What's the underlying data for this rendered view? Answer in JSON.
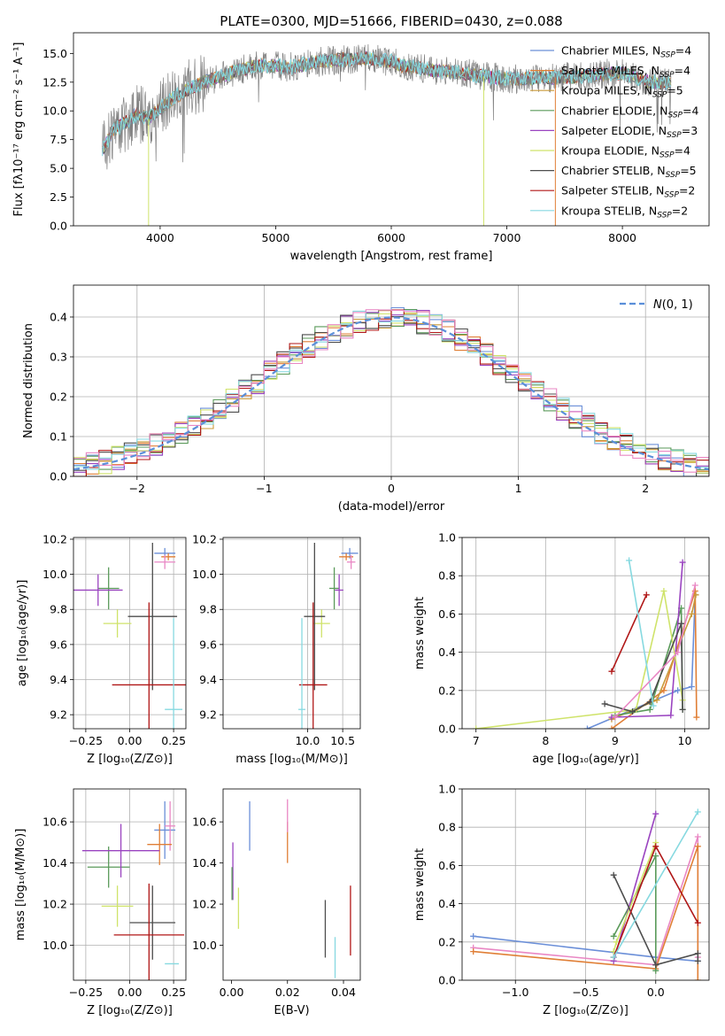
{
  "chart_data": [
    {
      "type": "line",
      "title": "PLATE=0300, MJD=51666, FIBERID=0430, z=0.088",
      "xlabel": "wavelength [Angstrom, rest frame]",
      "ylabel": "Flux [fλ10⁻¹⁷ erg cm⁻² s⁻¹ A⁻¹]",
      "xlim": [
        3250,
        8750
      ],
      "ylim": [
        0,
        16.8
      ],
      "xticks": [
        "4000",
        "5000",
        "6000",
        "7000",
        "8000"
      ],
      "yticks": [
        "0.0",
        "2.5",
        "5.0",
        "7.5",
        "10.0",
        "12.5",
        "15.0"
      ],
      "legend_position": "upper-right",
      "series": [
        {
          "name": "Chabrier MILES, N_SSP=4",
          "color": "#6b8fd8"
        },
        {
          "name": "Salpeter MILES, N_SSP=4",
          "color": "#e07f36"
        },
        {
          "name": "Kroupa MILES, N_SSP=5",
          "color": "#c99a3a"
        },
        {
          "name": "Chabrier ELODIE, N_SSP=4",
          "color": "#5a9a5a"
        },
        {
          "name": "Salpeter ELODIE, N_SSP=3",
          "color": "#9a44c0"
        },
        {
          "name": "Kroupa ELODIE, N_SSP=4",
          "color": "#cfe36a"
        },
        {
          "name": "Chabrier STELIB, N_SSP=5",
          "color": "#4d4d4d"
        },
        {
          "name": "Salpeter STELIB, N_SSP=2",
          "color": "#b01717"
        },
        {
          "name": "Kroupa STELIB, N_SSP=2",
          "color": "#86d9e0"
        }
      ],
      "data_series": {
        "name": "data",
        "color": "#808080"
      },
      "continuum": [
        [
          3500,
          6.5
        ],
        [
          3600,
          8.4
        ],
        [
          3700,
          9.0
        ],
        [
          3800,
          9.8
        ],
        [
          3900,
          9.3
        ],
        [
          4000,
          10.2
        ],
        [
          4100,
          11.0
        ],
        [
          4200,
          11.6
        ],
        [
          4300,
          12.2
        ],
        [
          4400,
          12.6
        ],
        [
          4500,
          12.9
        ],
        [
          4600,
          13.3
        ],
        [
          4700,
          13.6
        ],
        [
          4800,
          13.8
        ],
        [
          4900,
          14.0
        ],
        [
          5000,
          13.9
        ],
        [
          5100,
          13.8
        ],
        [
          5200,
          13.9
        ],
        [
          5300,
          14.2
        ],
        [
          5400,
          14.3
        ],
        [
          5500,
          14.4
        ],
        [
          5600,
          14.5
        ],
        [
          5700,
          14.5
        ],
        [
          5800,
          14.6
        ],
        [
          5900,
          14.4
        ],
        [
          6000,
          14.3
        ],
        [
          6100,
          13.9
        ],
        [
          6200,
          13.8
        ],
        [
          6300,
          13.6
        ],
        [
          6400,
          13.5
        ],
        [
          6500,
          13.4
        ],
        [
          6600,
          13.3
        ],
        [
          6700,
          13.2
        ],
        [
          6800,
          13.0
        ],
        [
          6900,
          12.9
        ],
        [
          7000,
          12.8
        ],
        [
          7200,
          12.8
        ],
        [
          7400,
          12.9
        ],
        [
          7600,
          13.0
        ],
        [
          7800,
          13.2
        ],
        [
          8000,
          13.3
        ],
        [
          8200,
          12.6
        ],
        [
          8400,
          12.4
        ]
      ]
    },
    {
      "type": "histogram",
      "xlabel": "(data-model)/error",
      "ylabel": "Normed distribution",
      "xlim": [
        -2.5,
        2.5
      ],
      "ylim": [
        0,
        0.48
      ],
      "xticks": [
        "−2",
        "−1",
        "0",
        "1",
        "2"
      ],
      "yticks": [
        "0.0",
        "0.1",
        "0.2",
        "0.3",
        "0.4"
      ],
      "grid": true,
      "legend_position": "upper-right",
      "reference": {
        "name": "N(0,1)",
        "label_prefix": "𝒩",
        "label_suffix": "(0, 1)",
        "mean": 0,
        "sd": 1,
        "color": "#5b8fd9"
      },
      "bin_width": 0.1,
      "bins_from": -2.6,
      "series_colors": [
        "#6b8fd8",
        "#e07f36",
        "#c99a3a",
        "#5a9a5a",
        "#9a44c0",
        "#cfe36a",
        "#4d4d4d",
        "#b01717",
        "#86d9e0",
        "#e987c4"
      ]
    },
    {
      "type": "errorbar",
      "xlabel": "Z [log₁₀(Z/Z⊙)]",
      "ylabel": "age  [log₁₀(age/yr)]",
      "xlim": [
        -0.32,
        0.32
      ],
      "ylim": [
        9.12,
        10.21
      ],
      "xticks": [
        "−0.25",
        "0.00",
        "0.25"
      ],
      "yticks": [
        "9.2",
        "9.4",
        "9.6",
        "9.8",
        "10.0",
        "10.2"
      ],
      "grid": true,
      "points": [
        {
          "x": 0.2,
          "y": 10.12,
          "xerr": 0.06,
          "yerr": 0.03,
          "color": "#6b8fd8"
        },
        {
          "x": 0.22,
          "y": 10.1,
          "xerr": 0.04,
          "yerr": 0.02,
          "color": "#e07f36"
        },
        {
          "x": 0.2,
          "y": 10.07,
          "xerr": 0.06,
          "yerr": 0.04,
          "color": "#e987c4"
        },
        {
          "x": -0.12,
          "y": 9.92,
          "xerr": 0.06,
          "yerr": 0.12,
          "color": "#5a9a5a"
        },
        {
          "x": -0.18,
          "y": 9.91,
          "xerr": 0.14,
          "yerr": 0.09,
          "color": "#9a44c0"
        },
        {
          "x": -0.07,
          "y": 9.72,
          "xerr": 0.08,
          "yerr": 0.08,
          "color": "#cfe36a"
        },
        {
          "x": 0.13,
          "y": 9.76,
          "xerr": 0.14,
          "yerr": 0.42,
          "color": "#4d4d4d"
        },
        {
          "x": 0.11,
          "y": 9.37,
          "xerr": 0.21,
          "yerr": 0.47,
          "color": "#b01717"
        },
        {
          "x": 0.25,
          "y": 9.23,
          "xerr": 0.05,
          "yerr": 0.52,
          "color": "#86d9e0"
        }
      ]
    },
    {
      "type": "errorbar",
      "xlabel": "mass [log₁₀(M/M⊙)]",
      "ylabel": "",
      "xlim": [
        8.8,
        10.75
      ],
      "ylim": [
        9.12,
        10.21
      ],
      "xticks": [
        "10.0",
        "10.5"
      ],
      "yticks": [
        "9.2",
        "9.4",
        "9.6",
        "9.8",
        "10.0",
        "10.2"
      ],
      "grid": true,
      "points": [
        {
          "x": 10.6,
          "y": 10.12,
          "xerr": 0.12,
          "yerr": 0.03,
          "color": "#6b8fd8"
        },
        {
          "x": 10.55,
          "y": 10.1,
          "xerr": 0.1,
          "yerr": 0.02,
          "color": "#e07f36"
        },
        {
          "x": 10.62,
          "y": 10.07,
          "xerr": 0.06,
          "yerr": 0.04,
          "color": "#e987c4"
        },
        {
          "x": 10.38,
          "y": 9.92,
          "xerr": 0.07,
          "yerr": 0.12,
          "color": "#5a9a5a"
        },
        {
          "x": 10.45,
          "y": 9.91,
          "xerr": 0.06,
          "yerr": 0.09,
          "color": "#9a44c0"
        },
        {
          "x": 10.2,
          "y": 9.72,
          "xerr": 0.12,
          "yerr": 0.08,
          "color": "#cfe36a"
        },
        {
          "x": 10.1,
          "y": 9.76,
          "xerr": 0.15,
          "yerr": 0.42,
          "color": "#4d4d4d"
        },
        {
          "x": 10.08,
          "y": 9.37,
          "xerr": 0.2,
          "yerr": 0.47,
          "color": "#b01717"
        },
        {
          "x": 9.92,
          "y": 9.23,
          "xerr": 0.05,
          "yerr": 0.52,
          "color": "#86d9e0"
        }
      ]
    },
    {
      "type": "line",
      "xlabel": "age  [log₁₀(age/yr)]",
      "ylabel": "mass weight",
      "xlim": [
        6.8,
        10.35
      ],
      "ylim": [
        0,
        1
      ],
      "xticks": [
        "7",
        "8",
        "9",
        "10"
      ],
      "yticks": [
        "0.0",
        "0.2",
        "0.4",
        "0.6",
        "0.8",
        "1.0"
      ],
      "grid": true,
      "series": [
        {
          "color": "#6b8fd8",
          "x": [
            8.6,
            9.9,
            10.1,
            10.15
          ],
          "y": [
            0.0,
            0.2,
            0.22,
            0.7
          ]
        },
        {
          "color": "#e07f36",
          "x": [
            8.95,
            9.7,
            10.15,
            10.17
          ],
          "y": [
            0.0,
            0.2,
            0.72,
            0.06
          ]
        },
        {
          "color": "#c99a3a",
          "x": [
            8.95,
            9.6,
            10.1,
            10.16
          ],
          "y": [
            0.05,
            0.15,
            0.6,
            0.7
          ]
        },
        {
          "color": "#5a9a5a",
          "x": [
            9.0,
            9.5,
            9.95,
            9.97
          ],
          "y": [
            0.07,
            0.1,
            0.63,
            0.1
          ]
        },
        {
          "color": "#9a44c0",
          "x": [
            8.95,
            9.8,
            9.97
          ],
          "y": [
            0.06,
            0.07,
            0.87
          ]
        },
        {
          "color": "#cfe36a",
          "x": [
            7.0,
            9.3,
            9.7,
            9.97
          ],
          "y": [
            0.0,
            0.1,
            0.72,
            0.15
          ]
        },
        {
          "color": "#4d4d4d",
          "x": [
            8.85,
            9.25,
            9.5,
            9.95,
            9.97
          ],
          "y": [
            0.13,
            0.09,
            0.14,
            0.55,
            0.1
          ]
        },
        {
          "color": "#b01717",
          "x": [
            8.95,
            9.45
          ],
          "y": [
            0.3,
            0.7
          ]
        },
        {
          "color": "#86d9e0",
          "x": [
            9.2,
            9.55
          ],
          "y": [
            0.88,
            0.12
          ]
        },
        {
          "color": "#e987c4",
          "x": [
            9.0,
            9.9,
            10.15
          ],
          "y": [
            0.06,
            0.4,
            0.75
          ]
        }
      ]
    },
    {
      "type": "errorbar",
      "xlabel": "Z [log₁₀(Z/Z⊙)]",
      "ylabel": "mass [log₁₀(M/M⊙)]",
      "xlim": [
        -0.32,
        0.32
      ],
      "ylim": [
        9.83,
        10.76
      ],
      "xticks": [
        "−0.25",
        "0.00",
        "0.25"
      ],
      "yticks": [
        "10.0",
        "10.2",
        "10.4",
        "10.6"
      ],
      "grid": true,
      "points": [
        {
          "x": 0.2,
          "y": 10.56,
          "xerr": 0.06,
          "yerr": 0.14,
          "color": "#6b8fd8"
        },
        {
          "x": 0.23,
          "y": 10.58,
          "xerr": 0.03,
          "yerr": 0.12,
          "color": "#e987c4"
        },
        {
          "x": 0.17,
          "y": 10.49,
          "xerr": 0.07,
          "yerr": 0.1,
          "color": "#e07f36"
        },
        {
          "x": -0.12,
          "y": 10.38,
          "xerr": 0.12,
          "yerr": 0.1,
          "color": "#5a9a5a"
        },
        {
          "x": -0.05,
          "y": 10.46,
          "xerr": 0.22,
          "yerr": 0.13,
          "color": "#9a44c0"
        },
        {
          "x": -0.07,
          "y": 10.19,
          "xerr": 0.09,
          "yerr": 0.1,
          "color": "#cfe36a"
        },
        {
          "x": 0.13,
          "y": 10.11,
          "xerr": 0.13,
          "yerr": 0.18,
          "color": "#4d4d4d"
        },
        {
          "x": 0.11,
          "y": 10.05,
          "xerr": 0.2,
          "yerr": 0.25,
          "color": "#b01717"
        },
        {
          "x": 0.24,
          "y": 9.91,
          "xerr": 0.04,
          "yerr": 0.0,
          "color": "#86d9e0"
        }
      ]
    },
    {
      "type": "errorbar",
      "xlabel": "E(B-V)",
      "ylabel": "",
      "xlim": [
        -0.003,
        0.046
      ],
      "ylim": [
        9.83,
        10.76
      ],
      "xticks": [
        "0.00",
        "0.02",
        "0.04"
      ],
      "yticks": [
        "10.0",
        "10.2",
        "10.4",
        "10.6"
      ],
      "grid": false,
      "points": [
        {
          "x": 0.0065,
          "y": 10.58,
          "yerr": 0.12,
          "color": "#6b8fd8"
        },
        {
          "x": 0.02,
          "y": 10.5,
          "yerr": 0.1,
          "color": "#e07f36"
        },
        {
          "x": 0.02,
          "y": 10.63,
          "yerr": 0.08,
          "color": "#e987c4"
        },
        {
          "x": 0.0005,
          "y": 10.36,
          "yerr": 0.14,
          "color": "#9a44c0"
        },
        {
          "x": 0.0002,
          "y": 10.3,
          "yerr": 0.08,
          "color": "#5a9a5a"
        },
        {
          "x": 0.0025,
          "y": 10.18,
          "yerr": 0.1,
          "color": "#cfe36a"
        },
        {
          "x": 0.0335,
          "y": 10.08,
          "yerr": 0.14,
          "color": "#4d4d4d"
        },
        {
          "x": 0.0425,
          "y": 10.12,
          "yerr": 0.17,
          "color": "#b01717"
        },
        {
          "x": 0.037,
          "y": 9.94,
          "yerr": 0.1,
          "color": "#86d9e0"
        }
      ]
    },
    {
      "type": "line",
      "xlabel": "Z [log₁₀(Z/Z⊙)]",
      "ylabel": "mass weight",
      "xlim": [
        -1.38,
        0.38
      ],
      "ylim": [
        0,
        1
      ],
      "xticks": [
        "−1.0",
        "−0.5",
        "0.0"
      ],
      "yticks": [
        "0.0",
        "0.2",
        "0.4",
        "0.6",
        "0.8",
        "1.0"
      ],
      "grid": true,
      "series": [
        {
          "color": "#6b8fd8",
          "x": [
            -1.3,
            0.0,
            0.3
          ],
          "y": [
            0.23,
            0.12,
            0.1
          ]
        },
        {
          "color": "#e987c4",
          "x": [
            -1.3,
            0.0,
            0.3,
            0.3
          ],
          "y": [
            0.17,
            0.08,
            0.75,
            0.12
          ]
        },
        {
          "color": "#e07f36",
          "x": [
            -1.3,
            0.0,
            0.3,
            0.3
          ],
          "y": [
            0.15,
            0.06,
            0.7,
            0.0
          ]
        },
        {
          "color": "#5a9a5a",
          "x": [
            -0.3,
            0.0,
            0.0
          ],
          "y": [
            0.23,
            0.65,
            0.05
          ]
        },
        {
          "color": "#9a44c0",
          "x": [
            -0.3,
            0.0
          ],
          "y": [
            0.1,
            0.87
          ]
        },
        {
          "color": "#cfe36a",
          "x": [
            -0.3,
            -0.28,
            0.0
          ],
          "y": [
            0.15,
            0.2,
            0.72
          ]
        },
        {
          "color": "#4d4d4d",
          "x": [
            -0.3,
            0.0,
            0.3,
            0.3
          ],
          "y": [
            0.55,
            0.08,
            0.14,
            0.1
          ]
        },
        {
          "color": "#b01717",
          "x": [
            -0.3,
            0.0,
            0.3
          ],
          "y": [
            0.12,
            0.7,
            0.3
          ]
        },
        {
          "color": "#86d9e0",
          "x": [
            -0.3,
            0.3
          ],
          "y": [
            0.12,
            0.88
          ]
        }
      ]
    }
  ]
}
